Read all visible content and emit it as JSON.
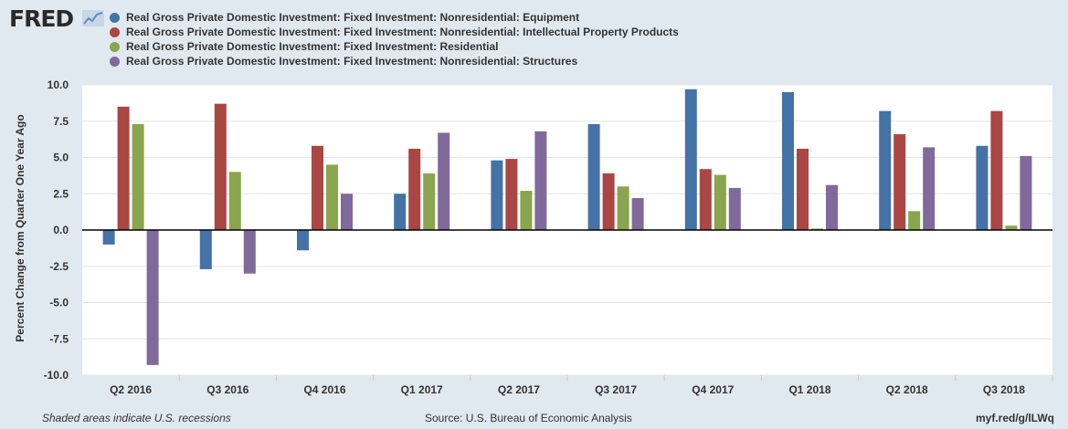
{
  "brand": {
    "name": "FRED",
    "icon": "chart-line-icon"
  },
  "chart_data": {
    "type": "bar",
    "title": "",
    "xlabel": "",
    "ylabel": "Percent Change from Quarter One Year Ago",
    "ylim": [
      -10,
      10
    ],
    "yticks": [
      "10.0",
      "7.5",
      "5.0",
      "2.5",
      "0.0",
      "-2.5",
      "-5.0",
      "-7.5",
      "-10.0"
    ],
    "categories": [
      "Q2 2016",
      "Q3 2016",
      "Q4 2016",
      "Q1 2017",
      "Q2 2017",
      "Q3 2017",
      "Q4 2017",
      "Q1 2018",
      "Q2 2018",
      "Q3 2018"
    ],
    "series": [
      {
        "name": "Real Gross Private Domestic Investment: Fixed Investment: Nonresidential: Equipment",
        "color": "#4572a7",
        "values": [
          -1.0,
          -2.7,
          -1.4,
          2.5,
          4.8,
          7.3,
          9.7,
          9.5,
          8.2,
          5.8
        ]
      },
      {
        "name": "Real Gross Private Domestic Investment: Fixed Investment: Nonresidential: Intellectual Property Products",
        "color": "#aa4643",
        "values": [
          8.5,
          8.7,
          5.8,
          5.6,
          4.9,
          3.9,
          4.2,
          5.6,
          6.6,
          8.2
        ]
      },
      {
        "name": "Real Gross Private Domestic Investment: Fixed Investment: Residential",
        "color": "#89a54e",
        "values": [
          7.3,
          4.0,
          4.5,
          3.9,
          2.7,
          3.0,
          3.8,
          0.1,
          1.3,
          0.3
        ]
      },
      {
        "name": "Real Gross Private Domestic Investment: Fixed Investment: Nonresidential: Structures",
        "color": "#80699b",
        "values": [
          -9.3,
          -3.0,
          2.5,
          6.7,
          6.8,
          2.2,
          2.9,
          3.1,
          5.7,
          5.1
        ]
      }
    ],
    "grid": true,
    "legend_position": "top-left"
  },
  "footer": {
    "recessions_note": "Shaded areas indicate U.S. recessions",
    "source": "Source: U.S. Bureau of Economic Analysis",
    "short_url": "myf.red/g/lLWq"
  }
}
